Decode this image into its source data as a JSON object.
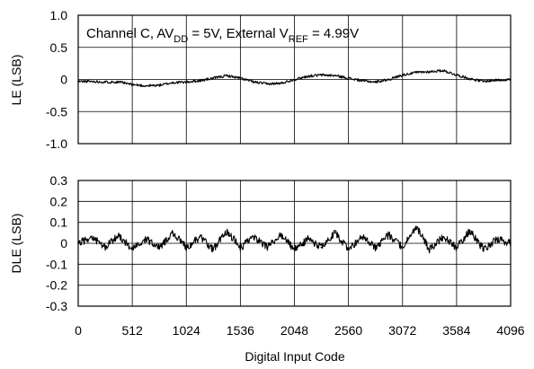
{
  "chart_data": [
    {
      "type": "line",
      "annotation": {
        "prefix": "Channel C, AV",
        "sub1": "DD",
        "mid": " = 5V, External V",
        "sub2": "REF",
        "suffix": " = 4.99V"
      },
      "ylabel": "LE (LSB)",
      "xlabel": "",
      "xlim": [
        0,
        4096
      ],
      "ylim": [
        -1.0,
        1.0
      ],
      "yticks": [
        "1.0",
        "0.5",
        "0",
        "-0.5",
        "-1.0"
      ],
      "ytick_values": [
        1.0,
        0.5,
        0,
        -0.5,
        -1.0
      ],
      "grid": true,
      "series": [
        {
          "x": [
            0,
            128,
            256,
            384,
            512,
            640,
            768,
            896,
            1024,
            1152,
            1280,
            1408,
            1536,
            1664,
            1792,
            1920,
            2048,
            2176,
            2304,
            2432,
            2560,
            2688,
            2816,
            2944,
            3072,
            3200,
            3328,
            3456,
            3584,
            3712,
            3840,
            3968,
            4095
          ],
          "values": [
            -0.03,
            -0.03,
            -0.04,
            -0.04,
            -0.08,
            -0.1,
            -0.09,
            -0.05,
            -0.04,
            -0.02,
            0.02,
            0.06,
            0.02,
            -0.04,
            -0.07,
            -0.06,
            0.0,
            0.05,
            0.07,
            0.06,
            0.02,
            -0.02,
            -0.04,
            0.0,
            0.07,
            0.11,
            0.12,
            0.14,
            0.07,
            0.01,
            -0.03,
            -0.01,
            0.0
          ]
        }
      ]
    },
    {
      "type": "line",
      "ylabel": "DLE (LSB)",
      "xlabel": "Digital Input Code",
      "xlim": [
        0,
        4096
      ],
      "ylim": [
        -0.3,
        0.3
      ],
      "xticks": [
        "0",
        "512",
        "1024",
        "1536",
        "2048",
        "2560",
        "3072",
        "3584",
        "4096"
      ],
      "xtick_values": [
        0,
        512,
        1024,
        1536,
        2048,
        2560,
        3072,
        3584,
        4096
      ],
      "yticks": [
        "0.3",
        "0.2",
        "0.1",
        "0",
        "-0.1",
        "-0.2",
        "-0.3"
      ],
      "ytick_values": [
        0.3,
        0.2,
        0.1,
        0,
        -0.1,
        -0.2,
        -0.3
      ],
      "grid": true,
      "series": [
        {
          "x": [
            0,
            128,
            256,
            384,
            512,
            640,
            768,
            896,
            1024,
            1152,
            1280,
            1408,
            1536,
            1664,
            1792,
            1920,
            2048,
            2176,
            2304,
            2432,
            2560,
            2688,
            2816,
            2944,
            3072,
            3200,
            3328,
            3456,
            3584,
            3712,
            3840,
            3968,
            4095
          ],
          "values": [
            0.0,
            0.03,
            -0.02,
            0.04,
            -0.03,
            0.02,
            -0.02,
            0.05,
            -0.02,
            0.03,
            -0.03,
            0.06,
            -0.02,
            0.03,
            -0.02,
            0.04,
            -0.03,
            0.02,
            -0.02,
            0.05,
            -0.03,
            0.03,
            -0.02,
            0.04,
            -0.02,
            0.08,
            -0.03,
            0.03,
            -0.02,
            0.06,
            -0.03,
            0.02,
            0.0
          ]
        }
      ]
    }
  ]
}
